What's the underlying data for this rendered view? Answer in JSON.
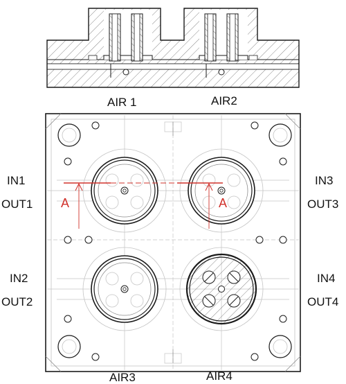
{
  "labels": {
    "air1": "AIR 1",
    "air2": "AIR2",
    "air3": "AIR3",
    "air4": "AIR4",
    "in1": "IN1",
    "out1": "OUT1",
    "in2": "IN2",
    "out2": "OUT2",
    "in3": "IN3",
    "out3": "OUT3",
    "in4": "IN4",
    "out4": "OUT4",
    "section_left": "A",
    "section_right": "A"
  },
  "colors": {
    "line": "#1a1a1a",
    "thin": "#8a8a8a",
    "faint": "#c4c4c4",
    "section": "#d0302a",
    "background": "#ffffff"
  }
}
